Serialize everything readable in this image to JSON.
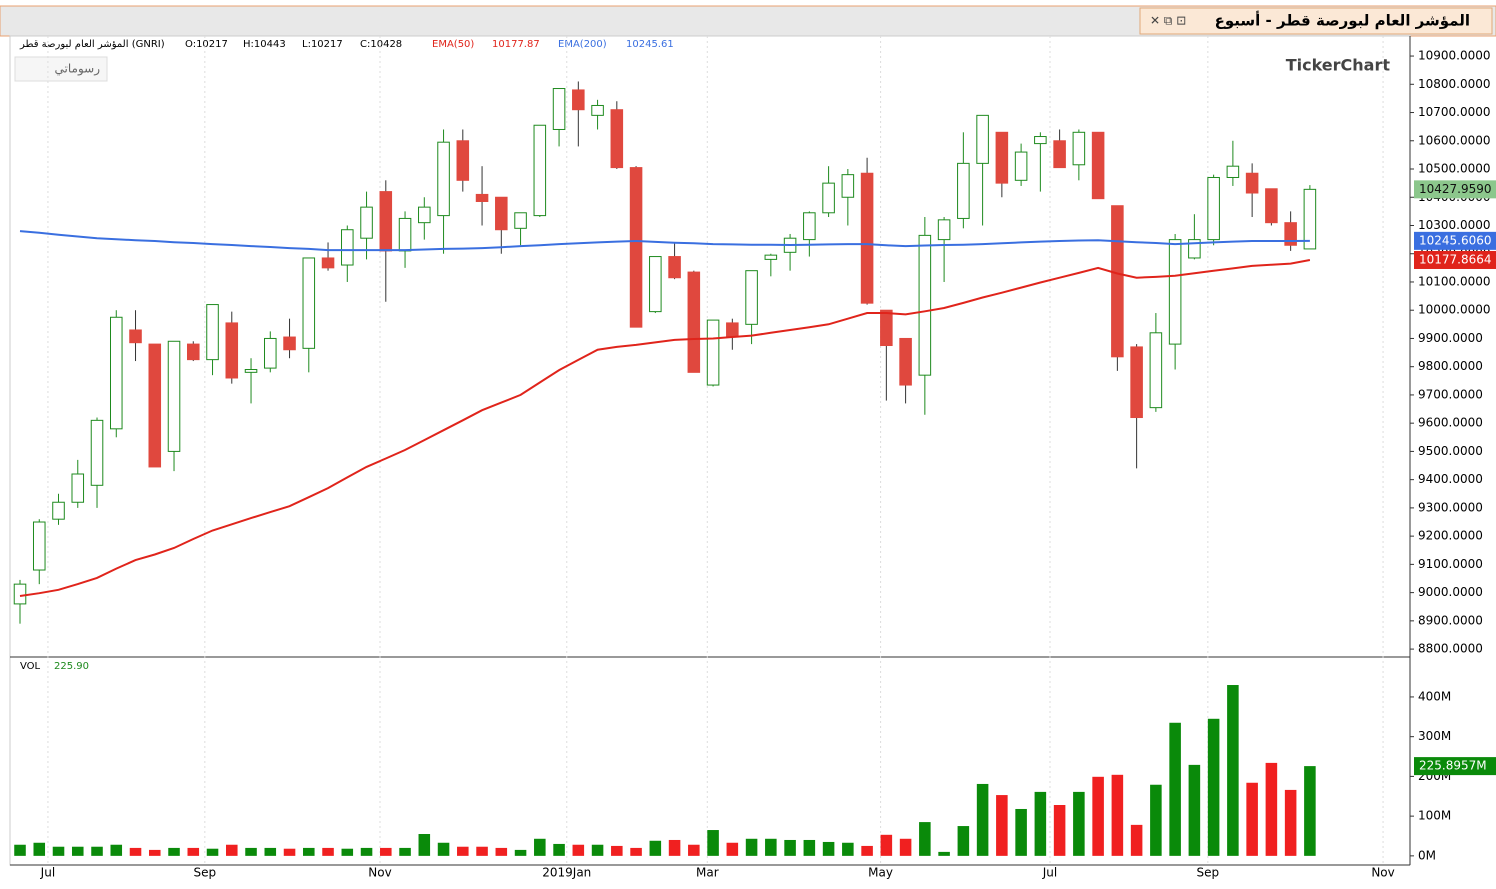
{
  "chart_data": {
    "type": "candlestick",
    "title": "المؤشر العام لبورصة قطر - أسبوع",
    "brand": "TickerChart",
    "drawings_button": "رسوماتي",
    "header": {
      "symbol": "المؤشر العام لبورصة قطر (GNRI)",
      "open": "O:10217",
      "high": "H:10443",
      "low": "L:10217",
      "close": "C:10428"
    },
    "xlim": [
      -0.52,
      72.2
    ],
    "xticks": [
      {
        "value": 1.45,
        "label": "Jul"
      },
      {
        "value": 9.6,
        "label": "Sep"
      },
      {
        "value": 18.7,
        "label": "Nov"
      },
      {
        "value": 28.4,
        "label": "2019Jan"
      },
      {
        "value": 35.7,
        "label": "Mar"
      },
      {
        "value": 44.7,
        "label": "May"
      },
      {
        "value": 53.5,
        "label": "Jul"
      },
      {
        "value": 61.7,
        "label": "Sep"
      },
      {
        "value": 70.8,
        "label": "Nov"
      }
    ],
    "ylim": [
      8772,
      10971
    ],
    "yticks": [
      {
        "value": 8800,
        "label": "8800.0000"
      },
      {
        "value": 8900,
        "label": "8900.0000"
      },
      {
        "value": 9000,
        "label": "9000.0000"
      },
      {
        "value": 9100,
        "label": "9100.0000"
      },
      {
        "value": 9200,
        "label": "9200.0000"
      },
      {
        "value": 9300,
        "label": "9300.0000"
      },
      {
        "value": 9400,
        "label": "9400.0000"
      },
      {
        "value": 9500,
        "label": "9500.0000"
      },
      {
        "value": 9600,
        "label": "9600.0000"
      },
      {
        "value": 9700,
        "label": "9700.0000"
      },
      {
        "value": 9800,
        "label": "9800.0000"
      },
      {
        "value": 9900,
        "label": "9900.0000"
      },
      {
        "value": 10000,
        "label": "10000.0000"
      },
      {
        "value": 10100,
        "label": "10100.0000"
      },
      {
        "value": 10200,
        "label": "10200.0000"
      },
      {
        "value": 10300,
        "label": "10300.0000"
      },
      {
        "value": 10400,
        "label": "10400.0000"
      },
      {
        "value": 10500,
        "label": "10500.0000"
      },
      {
        "value": 10600,
        "label": "10600.0000"
      },
      {
        "value": 10700,
        "label": "10700.0000"
      },
      {
        "value": 10800,
        "label": "10800.0000"
      },
      {
        "value": 10900,
        "label": "10900.0000"
      }
    ],
    "up_color": "#1e8a1e",
    "down_color": "#e0483e",
    "open": [
      8960,
      9080,
      9260,
      9320,
      9380,
      9580,
      9930,
      9880,
      9500,
      9880,
      9825,
      9955,
      9780,
      9795,
      9905,
      9865,
      10185,
      10160,
      10255,
      10420,
      10210,
      10310,
      10335,
      10600,
      10410,
      10400,
      10290,
      10335,
      10640,
      10780,
      10690,
      10710,
      10505,
      9995,
      10190,
      10135,
      9735,
      9955,
      9950,
      10180,
      10205,
      10250,
      10345,
      10400,
      10485,
      10000,
      9900,
      9770,
      10250,
      10325,
      10520,
      10630,
      10460,
      10590,
      10600,
      10515,
      10630,
      10370,
      9870,
      9655,
      9880,
      10185,
      10250,
      10470,
      10485,
      10430,
      10310,
      10217
    ],
    "high": [
      9045,
      9260,
      9350,
      9470,
      9620,
      10000,
      10000,
      9880,
      9890,
      9890,
      10020,
      9995,
      9830,
      9925,
      9970,
      10185,
      10240,
      10300,
      10420,
      10460,
      10350,
      10400,
      10640,
      10640,
      10510,
      10400,
      10345,
      10655,
      10785,
      10810,
      10745,
      10740,
      10510,
      10190,
      10240,
      10140,
      9965,
      9970,
      10140,
      10200,
      10270,
      10350,
      10510,
      10500,
      10540,
      10000,
      9900,
      10330,
      10330,
      10630,
      10690,
      10630,
      10590,
      10630,
      10640,
      10640,
      10630,
      10370,
      9880,
      9990,
      10270,
      10340,
      10480,
      10600,
      10520,
      10430,
      10350,
      10443
    ],
    "low": [
      8890,
      9030,
      9240,
      9300,
      9300,
      9550,
      9820,
      9445,
      9430,
      9820,
      9770,
      9740,
      9670,
      9780,
      9830,
      9780,
      10140,
      10100,
      10180,
      10030,
      10150,
      10250,
      10200,
      10420,
      10300,
      10200,
      10230,
      10330,
      10580,
      10580,
      10640,
      10500,
      9940,
      9990,
      10110,
      9780,
      9730,
      9860,
      9880,
      10120,
      10140,
      10190,
      10330,
      10300,
      10020,
      9680,
      9670,
      9630,
      10100,
      10290,
      10300,
      10400,
      10440,
      10420,
      10505,
      10460,
      10395,
      9785,
      9440,
      9640,
      9790,
      10180,
      10230,
      10440,
      10330,
      10300,
      10210,
      10217
    ],
    "close": [
      9030,
      9250,
      9320,
      9420,
      9610,
      9975,
      9885,
      9445,
      9890,
      9825,
      10020,
      9760,
      9790,
      9900,
      9860,
      10185,
      10150,
      10285,
      10365,
      10210,
      10325,
      10365,
      10595,
      10460,
      10385,
      10285,
      10345,
      10655,
      10785,
      10710,
      10725,
      10505,
      9940,
      10190,
      10115,
      9780,
      9965,
      9905,
      10140,
      10195,
      10255,
      10345,
      10450,
      10480,
      10025,
      9875,
      9735,
      10265,
      10320,
      10520,
      10690,
      10450,
      10560,
      10615,
      10505,
      10630,
      10395,
      9835,
      9620,
      9920,
      10250,
      10250,
      10470,
      10510,
      10415,
      10310,
      10230,
      10428
    ],
    "last_price": {
      "value": 10427.959,
      "label": "10427.9590"
    },
    "series": [
      {
        "name": "EMA(50)",
        "last_label": "10177.87",
        "axis_label": "10177.8664",
        "last": 10177.8664,
        "color": "#e0241b",
        "values": [
          8988,
          8998,
          9010,
          9030,
          9052,
          9085,
          9115,
          9135,
          9158,
          9190,
          9220,
          9242,
          9264,
          9285,
          9306,
          9338,
          9370,
          9408,
          9445,
          9475,
          9505,
          9540,
          9575,
          9610,
          9646,
          9673,
          9700,
          9744,
          9788,
          9824,
          9860,
          9870,
          9877,
          9886,
          9895,
          9898,
          9900,
          9905,
          9910,
          9920,
          9930,
          9940,
          9950,
          9970,
          9990,
          9990,
          9985,
          9996,
          10008,
          10026,
          10045,
          10062,
          10080,
          10098,
          10115,
          10132,
          10150,
          10130,
          10115,
          10118,
          10122,
          10131,
          10140,
          10148,
          10157,
          10161,
          10165,
          10177.87
        ]
      },
      {
        "name": "EMA(200)",
        "last_label": "10245.61",
        "axis_label": "10245.6060",
        "last": 10245.606,
        "color": "#3a6fe0",
        "values": [
          10280,
          10274,
          10267,
          10261,
          10255,
          10251,
          10248,
          10245,
          10241,
          10238,
          10234,
          10231,
          10227,
          10224,
          10220,
          10217,
          10213,
          10213,
          10213,
          10213,
          10213,
          10215,
          10217,
          10218,
          10220,
          10223,
          10227,
          10230,
          10234,
          10237,
          10240,
          10243,
          10245,
          10242,
          10239,
          10237,
          10234,
          10233,
          10232,
          10232,
          10231,
          10232,
          10233,
          10234,
          10234,
          10230,
          10227,
          10229,
          10231,
          10232,
          10234,
          10237,
          10240,
          10243,
          10245,
          10247,
          10248,
          10244,
          10241,
          10238,
          10234,
          10237,
          10240,
          10243,
          10245,
          10245,
          10245,
          10245.61
        ]
      }
    ],
    "volume": {
      "name": "VOL",
      "last_label": "225.90",
      "axis_label": "225.8957M",
      "last": 225.8957,
      "up_color": "#0a8a0a",
      "down_color": "#f02020",
      "ylim": [
        -23,
        498
      ],
      "yticks": [
        {
          "value": 0,
          "label": "0M"
        },
        {
          "value": 100,
          "label": "100M"
        },
        {
          "value": 200,
          "label": "200M"
        },
        {
          "value": 300,
          "label": "300M"
        },
        {
          "value": 400,
          "label": "400M"
        }
      ],
      "values": [
        28,
        33,
        23,
        23,
        23,
        28,
        20,
        15,
        20,
        20,
        18,
        28,
        20,
        20,
        18,
        20,
        20,
        18,
        20,
        20,
        20,
        55,
        33,
        23,
        23,
        20,
        15,
        43,
        30,
        28,
        28,
        25,
        20,
        38,
        40,
        28,
        65,
        33,
        43,
        43,
        40,
        40,
        35,
        33,
        25,
        53,
        43,
        85,
        10,
        75,
        181,
        153,
        118,
        161,
        128,
        161,
        199,
        204,
        78,
        179,
        335,
        229,
        345,
        430,
        184,
        234,
        166,
        225.8957
      ]
    }
  }
}
